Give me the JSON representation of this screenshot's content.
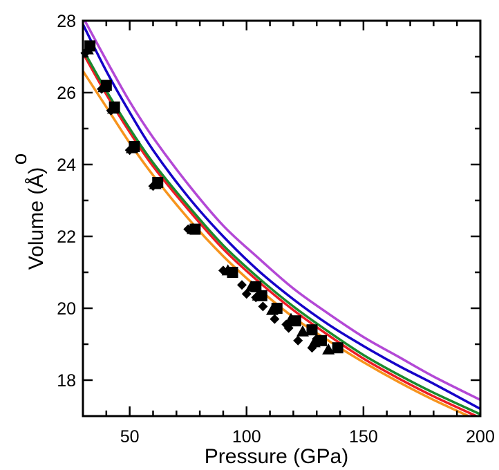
{
  "chart_data": {
    "type": "scatter",
    "title": "",
    "xlabel": "Pressure (GPa)",
    "ylabel": "Volume (Å)",
    "ylabel_accent": "o",
    "xlim": [
      30,
      200
    ],
    "ylim": [
      17,
      28
    ],
    "x_ticks": [
      50,
      100,
      150,
      200
    ],
    "x_tick_labels": [
      "50",
      "100",
      "150",
      "200"
    ],
    "y_ticks": [
      18,
      20,
      22,
      24,
      26,
      28
    ],
    "y_tick_labels": [
      "18",
      "20",
      "22",
      "24",
      "26",
      "28"
    ],
    "x_minor_step": 10,
    "y_minor_step": 1,
    "grid": false,
    "legend": "none",
    "curves": [
      {
        "color": "#f7941d",
        "x": [
          30,
          40,
          50,
          60,
          75,
          90,
          105,
          120,
          135,
          150,
          165,
          180,
          200
        ],
        "y": [
          26.6,
          25.6,
          24.6,
          23.7,
          22.5,
          21.45,
          20.55,
          19.75,
          19.1,
          18.5,
          17.95,
          17.45,
          16.85
        ]
      },
      {
        "color": "#ee1c25",
        "x": [
          30,
          40,
          50,
          60,
          75,
          90,
          105,
          120,
          135,
          150,
          165,
          180,
          200
        ],
        "y": [
          27.1,
          25.95,
          24.9,
          23.95,
          22.75,
          21.65,
          20.75,
          19.95,
          19.25,
          18.6,
          18.05,
          17.55,
          16.95
        ]
      },
      {
        "color": "#1a8a2e",
        "x": [
          30,
          40,
          50,
          60,
          75,
          90,
          105,
          120,
          135,
          150,
          165,
          180,
          200
        ],
        "y": [
          27.2,
          26.05,
          25.0,
          24.05,
          22.85,
          21.75,
          20.85,
          20.05,
          19.35,
          18.7,
          18.15,
          17.65,
          17.05
        ]
      },
      {
        "color": "#1500c8",
        "x": [
          30,
          40,
          50,
          60,
          75,
          90,
          105,
          120,
          135,
          150,
          165,
          180,
          200
        ],
        "y": [
          27.9,
          26.6,
          25.45,
          24.4,
          23.1,
          22.0,
          21.05,
          20.25,
          19.55,
          18.95,
          18.4,
          17.9,
          17.2
        ]
      },
      {
        "color": "#b348d6",
        "x": [
          30,
          40,
          50,
          60,
          75,
          90,
          105,
          120,
          135,
          150,
          165,
          180,
          200
        ],
        "y": [
          28.1,
          26.9,
          25.75,
          24.75,
          23.45,
          22.3,
          21.4,
          20.55,
          19.85,
          19.2,
          18.65,
          18.1,
          17.45
        ]
      }
    ],
    "series": [
      {
        "marker": "square",
        "color": "#000000",
        "x": [
          33,
          40,
          43.5,
          52,
          62,
          78,
          94,
          104,
          106.5,
          113,
          121,
          128,
          132,
          139
        ],
        "y": [
          27.3,
          26.2,
          25.6,
          24.5,
          23.5,
          22.2,
          21.0,
          20.6,
          20.35,
          20.0,
          19.65,
          19.4,
          19.1,
          18.9
        ]
      },
      {
        "marker": "triangle",
        "color": "#000000",
        "x": [
          32,
          39,
          43,
          51,
          61,
          77,
          92,
          102,
          105,
          111,
          119,
          124,
          129,
          135
        ],
        "y": [
          27.2,
          26.15,
          25.55,
          24.45,
          23.45,
          22.2,
          21.05,
          20.6,
          20.35,
          19.95,
          19.7,
          19.35,
          19.05,
          18.85
        ]
      },
      {
        "marker": "diamond",
        "color": "#000000",
        "x": [
          31,
          38,
          42,
          50,
          60,
          75,
          90,
          98,
          100,
          104,
          107,
          112,
          117,
          118,
          122,
          128,
          130
        ],
        "y": [
          27.1,
          26.1,
          25.5,
          24.4,
          23.4,
          22.2,
          21.05,
          20.65,
          20.4,
          20.3,
          20.05,
          19.7,
          19.55,
          19.45,
          19.1,
          18.9,
          19.15
        ]
      }
    ]
  }
}
